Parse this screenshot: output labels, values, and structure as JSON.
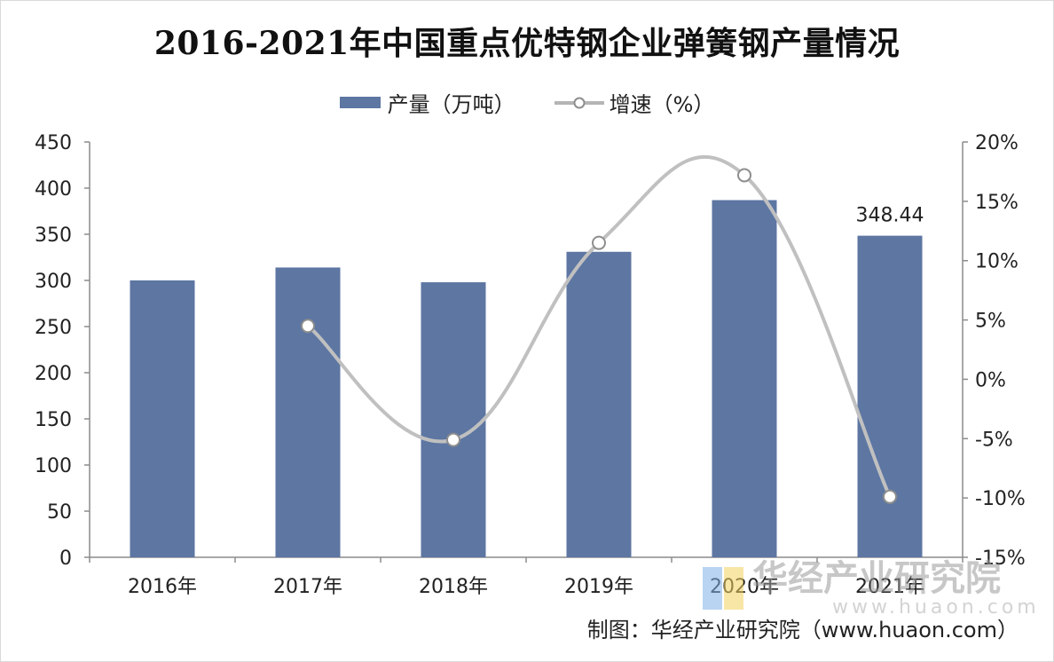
{
  "chart_data": {
    "type": "bar",
    "title": "2016-2021年中国重点优特钢企业弹簧钢产量情况",
    "categories": [
      "2016年",
      "2017年",
      "2018年",
      "2019年",
      "2020年",
      "2021年"
    ],
    "series": [
      {
        "name": "产量（万吨）",
        "type": "bar",
        "axis": "left",
        "values": [
          300,
          314,
          298,
          331,
          387,
          348.44
        ]
      },
      {
        "name": "增速（%）",
        "type": "line",
        "axis": "right",
        "values": [
          null,
          4.5,
          -5.1,
          11.5,
          17.2,
          -9.9
        ]
      }
    ],
    "data_labels": [
      {
        "series": 0,
        "index": 5,
        "text": "348.44"
      }
    ],
    "y_left": {
      "min": 0,
      "max": 450,
      "ticks": [
        "0",
        "50",
        "100",
        "150",
        "200",
        "250",
        "300",
        "350",
        "400",
        "450"
      ]
    },
    "y_right": {
      "min": -15,
      "max": 20,
      "ticks": [
        "-15%",
        "-10%",
        "-5%",
        "0%",
        "5%",
        "10%",
        "15%",
        "20%"
      ]
    },
    "legend_position": "top-center",
    "grid": false,
    "colors": {
      "bar": "#5d76a2",
      "line": "#c0c0c0",
      "marker_fill": "#ffffff",
      "marker_stroke": "#8e8e8e"
    }
  },
  "legend": {
    "bar_label": "产量（万吨）",
    "line_label": "增速（%）"
  },
  "source": "制图：华经产业研究院（www.huaon.com）",
  "watermark": {
    "main": "华经产业研究院",
    "sub": "www.huaon.com"
  }
}
